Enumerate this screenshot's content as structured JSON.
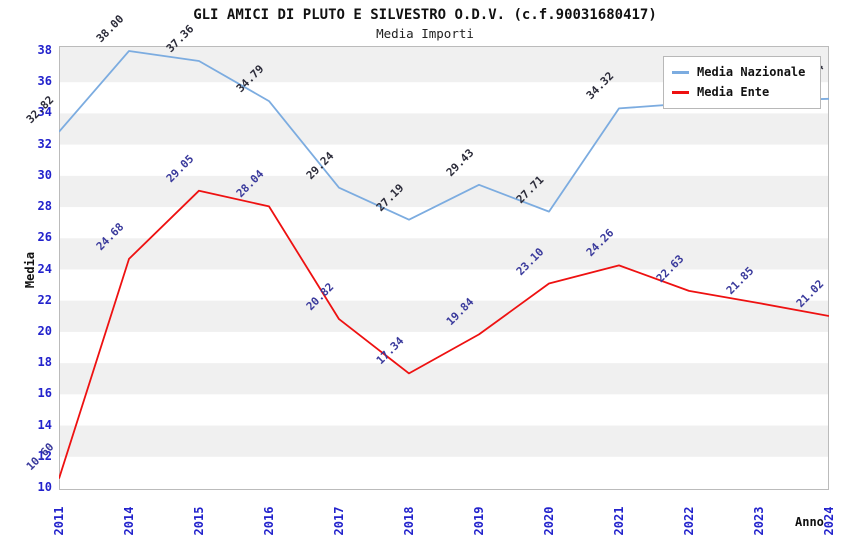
{
  "header": {
    "title": "GLI AMICI DI PLUTO E SILVESTRO O.D.V. (c.f.90031680417)",
    "subtitle": "Media Importi"
  },
  "axes": {
    "x_title": "Anno",
    "y_title": "Media",
    "y_ticks": [
      38,
      36,
      34,
      32,
      30,
      28,
      26,
      24,
      22,
      20,
      18,
      16,
      14,
      12,
      10
    ],
    "x_ticks": [
      "2011",
      "2014",
      "2015",
      "2016",
      "2017",
      "2018",
      "2019",
      "2020",
      "2021",
      "2022",
      "2023",
      "2024"
    ]
  },
  "colors": {
    "nazionale_line": "#7cace0",
    "ente_line": "#ee1111",
    "nazionale_label": "#2c2c3a",
    "ente_label": "#3a3a9c",
    "tick_text": "#2222cc",
    "band_gray": "#f0f0f0",
    "plot_border": "#bbbbbb"
  },
  "legend": {
    "items": [
      {
        "label": "Media Nazionale",
        "color": "#7cace0"
      },
      {
        "label": "Media Ente",
        "color": "#ee1111"
      }
    ]
  },
  "chart_data": {
    "type": "line",
    "title": "GLI AMICI DI PLUTO E SILVESTRO O.D.V. (c.f.90031680417)",
    "subtitle": "Media Importi",
    "xlabel": "Anno",
    "ylabel": "Media",
    "x": [
      "2011",
      "2014",
      "2015",
      "2016",
      "2017",
      "2018",
      "2019",
      "2020",
      "2021",
      "2022",
      "2023",
      "2024"
    ],
    "ylim": [
      10,
      38
    ],
    "ytick_step": 2,
    "grid": "alternating-horizontal-bands",
    "legend_position": "top-right",
    "series": [
      {
        "name": "Media Nazionale",
        "color": "#7cace0",
        "label_color": "#2c2c3a",
        "values": [
          32.82,
          38.0,
          37.36,
          34.79,
          29.24,
          27.19,
          29.43,
          27.71,
          34.32,
          34.65,
          34.8,
          34.94
        ],
        "labels": [
          "32.82",
          "38.00",
          "37.36",
          "34.79",
          "29.24",
          "27.19",
          "29.43",
          "27.71",
          "34.32",
          "",
          "",
          "34.94"
        ],
        "note_labels_2022_2023": "hidden behind legend in source image; values estimated from line position"
      },
      {
        "name": "Media Ente",
        "color": "#ee1111",
        "label_color": "#3a3a9c",
        "values": [
          10.6,
          24.68,
          29.05,
          28.04,
          20.82,
          17.34,
          19.84,
          23.1,
          24.26,
          22.63,
          21.85,
          21.02
        ],
        "labels": [
          "10.60",
          "24.68",
          "29.05",
          "28.04",
          "20.82",
          "17.34",
          "19.84",
          "23.10",
          "24.26",
          "22.63",
          "21.85",
          "21.02"
        ]
      }
    ]
  }
}
